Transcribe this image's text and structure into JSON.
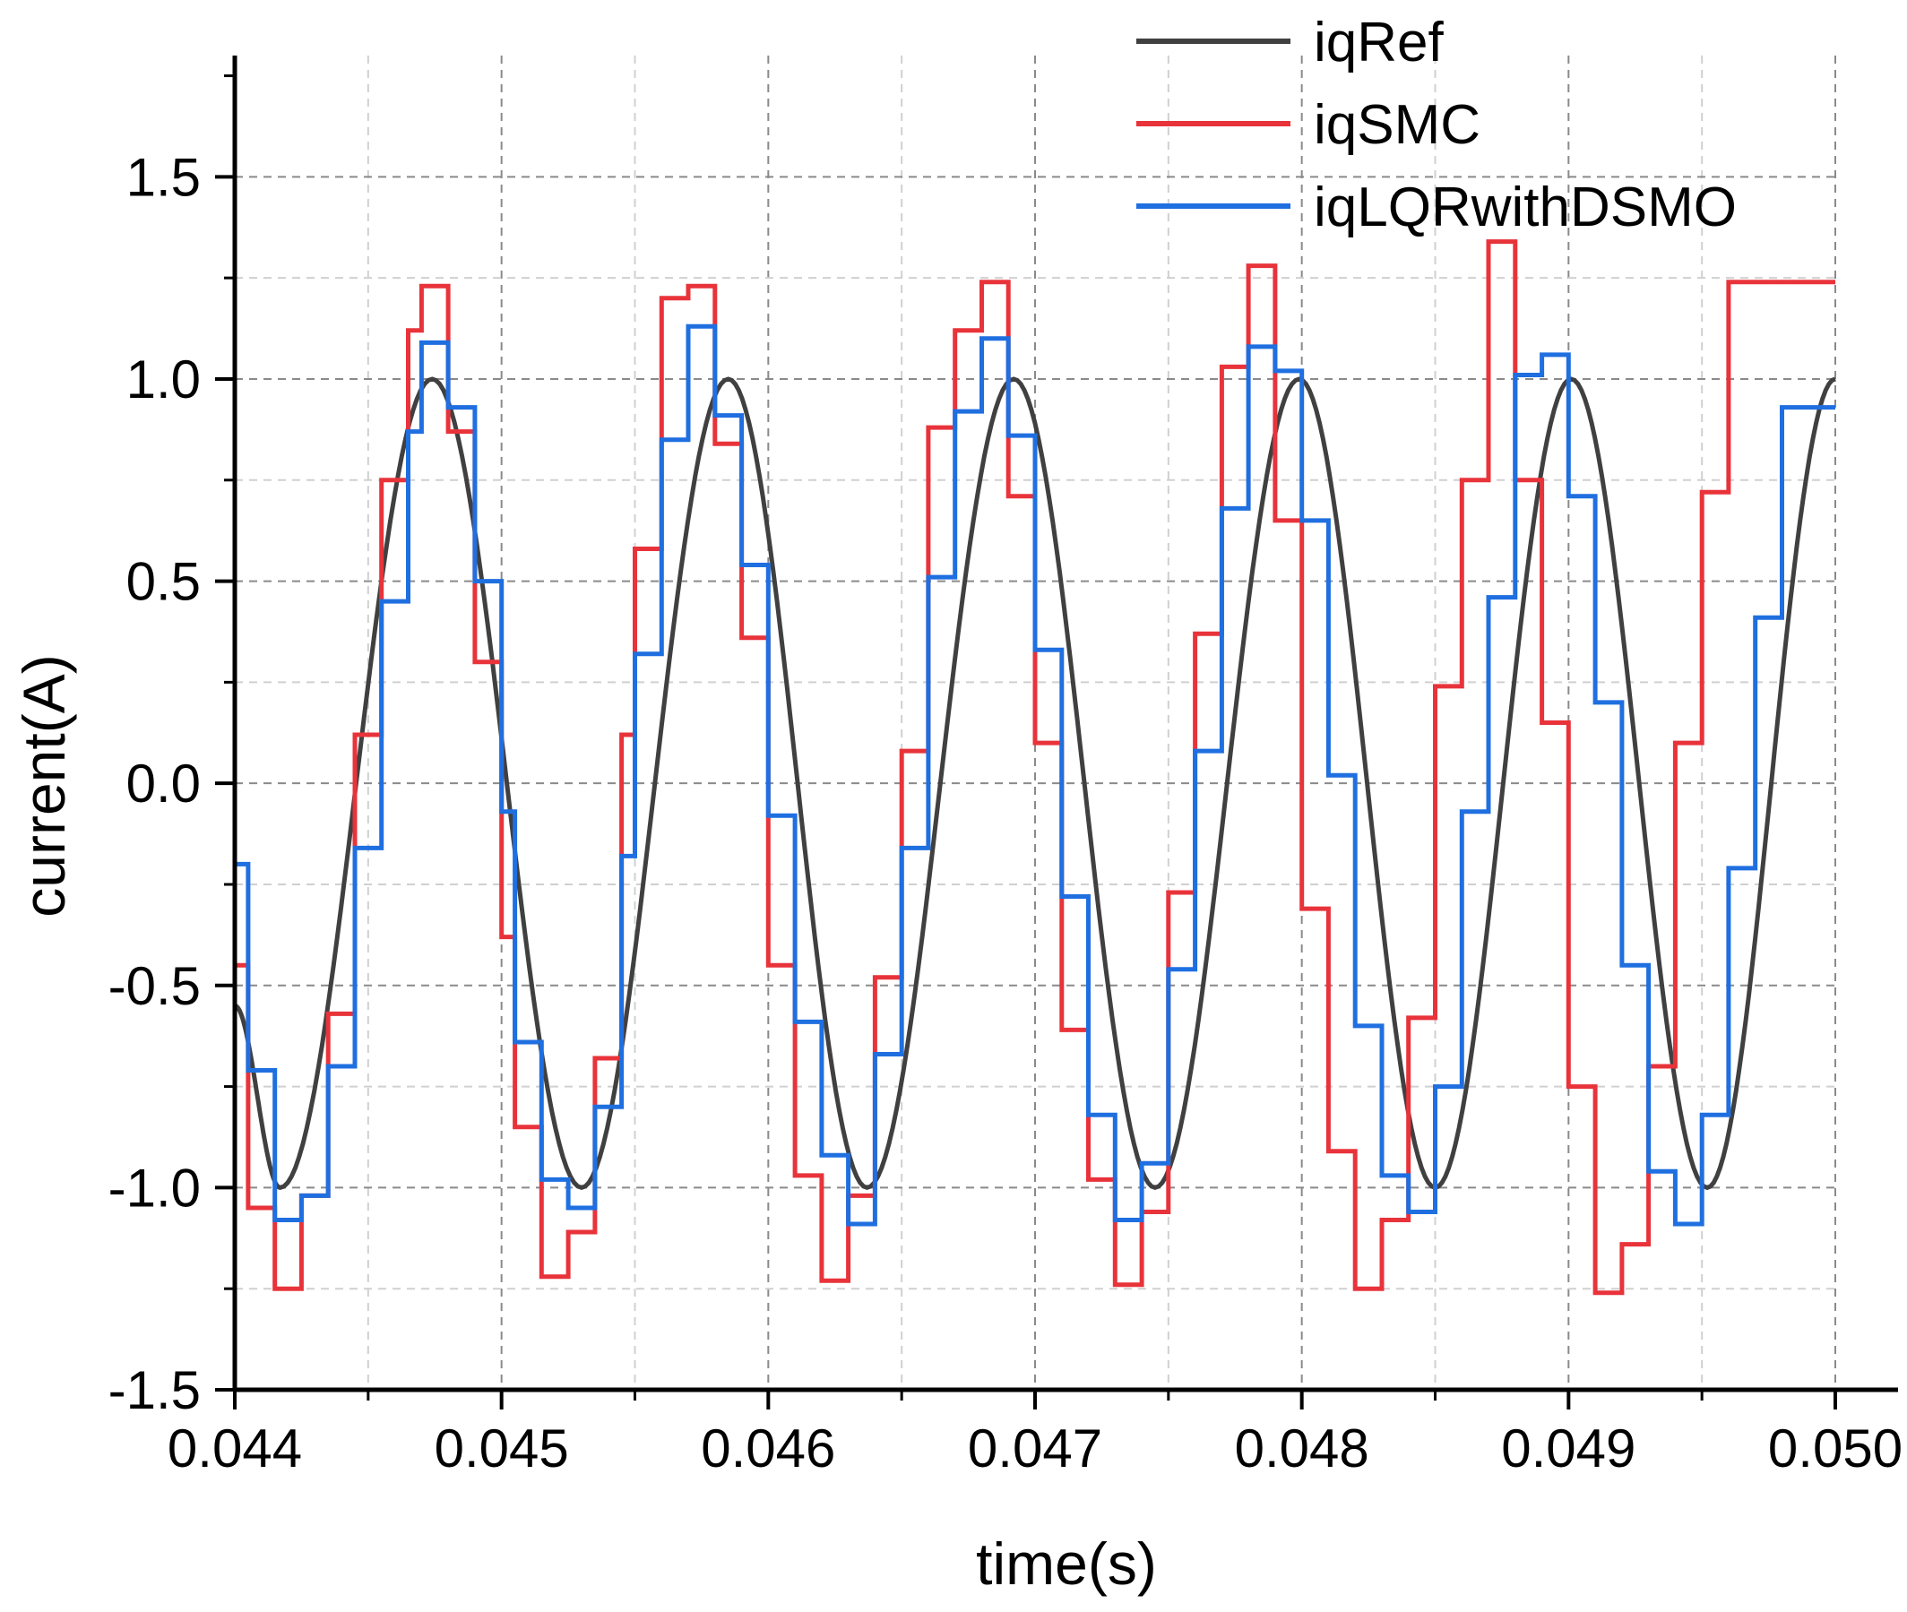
{
  "chart_data": {
    "type": "line",
    "title": "",
    "xlabel": "time(s)",
    "ylabel": "current(A)",
    "xlim": [
      0.044,
      0.05
    ],
    "ylim": [
      -1.5,
      1.8
    ],
    "x_ticks": [
      0.044,
      0.045,
      0.046,
      0.047,
      0.048,
      0.049,
      0.05
    ],
    "x_tick_labels": [
      "0.044",
      "0.045",
      "0.046",
      "0.047",
      "0.048",
      "0.049",
      "0.050"
    ],
    "y_ticks": [
      -1.5,
      -1.0,
      -0.5,
      0.0,
      0.5,
      1.0,
      1.5
    ],
    "y_tick_labels": [
      "-1.5",
      "-1.0",
      "-0.5",
      "0.0",
      "0.5",
      "1.0",
      "1.5"
    ],
    "grid": true,
    "legend_position": "top-right",
    "series": [
      {
        "name": "iqRef",
        "color": "#404040",
        "style": "sine",
        "amplitude": 1.0,
        "peak_times": [
          0.04474,
          0.04585,
          0.04692,
          0.04799,
          0.04901,
          0.05
        ],
        "trough_times": [
          0.04417,
          0.0453,
          0.04637,
          0.04745,
          0.0485,
          0.04952
        ],
        "start_value": -0.55,
        "end_value": 1.0
      },
      {
        "name": "iqSMC",
        "color": "#e8333a",
        "style": "step",
        "x": [
          0.044,
          0.04405,
          0.04415,
          0.04425,
          0.04435,
          0.04445,
          0.04455,
          0.04465,
          0.0447,
          0.0448,
          0.0449,
          0.045,
          0.04505,
          0.04515,
          0.04525,
          0.04535,
          0.04545,
          0.0455,
          0.0456,
          0.0457,
          0.0458,
          0.0459,
          0.046,
          0.0461,
          0.0462,
          0.0463,
          0.0464,
          0.0465,
          0.0466,
          0.0467,
          0.0468,
          0.0469,
          0.047,
          0.0471,
          0.0472,
          0.0473,
          0.0474,
          0.0475,
          0.0476,
          0.0477,
          0.0478,
          0.0479,
          0.048,
          0.0481,
          0.0482,
          0.0483,
          0.0484,
          0.0485,
          0.0486,
          0.0487,
          0.0488,
          0.0489,
          0.049,
          0.0491,
          0.0492,
          0.0493,
          0.0494,
          0.0495,
          0.0496,
          0.0497,
          0.0498,
          0.0499,
          0.05
        ],
        "y": [
          -0.45,
          -1.05,
          -1.25,
          -1.02,
          -0.57,
          0.12,
          0.75,
          1.12,
          1.23,
          0.87,
          0.3,
          -0.38,
          -0.85,
          -1.22,
          -1.11,
          -0.68,
          0.12,
          0.58,
          1.2,
          1.23,
          0.84,
          0.36,
          -0.45,
          -0.97,
          -1.23,
          -1.02,
          -0.48,
          0.08,
          0.88,
          1.12,
          1.24,
          0.71,
          0.1,
          -0.61,
          -0.98,
          -1.24,
          -1.06,
          -0.27,
          0.37,
          1.03,
          1.28,
          0.65,
          -0.31,
          -0.91,
          -1.25,
          -1.08,
          -0.58,
          0.24,
          0.75,
          1.34,
          0.75,
          0.15,
          -0.75,
          -1.26,
          -1.14,
          -0.7,
          0.1,
          0.72,
          1.24,
          1.24,
          1.24,
          1.24,
          1.24
        ]
      },
      {
        "name": "iqLQRwithDSMO",
        "color": "#1f6fe0",
        "style": "step",
        "x": [
          0.044,
          0.04405,
          0.04415,
          0.04425,
          0.04435,
          0.04445,
          0.04455,
          0.04465,
          0.0447,
          0.0448,
          0.0449,
          0.045,
          0.04505,
          0.04515,
          0.04525,
          0.04535,
          0.04545,
          0.0455,
          0.0456,
          0.0457,
          0.0458,
          0.0459,
          0.046,
          0.0461,
          0.0462,
          0.0463,
          0.0464,
          0.0465,
          0.0466,
          0.0467,
          0.0468,
          0.0469,
          0.047,
          0.0471,
          0.0472,
          0.0473,
          0.0474,
          0.0475,
          0.0476,
          0.0477,
          0.0478,
          0.0479,
          0.048,
          0.0481,
          0.0482,
          0.0483,
          0.0484,
          0.0485,
          0.0486,
          0.0487,
          0.0488,
          0.0489,
          0.049,
          0.0491,
          0.0492,
          0.0493,
          0.0494,
          0.0495,
          0.0496,
          0.0497,
          0.0498,
          0.0499,
          0.05
        ],
        "y": [
          -0.2,
          -0.71,
          -1.08,
          -1.02,
          -0.7,
          -0.16,
          0.45,
          0.87,
          1.09,
          0.93,
          0.5,
          -0.07,
          -0.64,
          -0.98,
          -1.05,
          -0.8,
          -0.18,
          0.32,
          0.85,
          1.13,
          0.91,
          0.54,
          -0.08,
          -0.59,
          -0.92,
          -1.09,
          -0.67,
          -0.16,
          0.51,
          0.92,
          1.1,
          0.86,
          0.33,
          -0.28,
          -0.82,
          -1.08,
          -0.94,
          -0.46,
          0.08,
          0.68,
          1.08,
          1.02,
          0.65,
          0.02,
          -0.6,
          -0.97,
          -1.06,
          -0.75,
          -0.07,
          0.46,
          1.01,
          1.06,
          0.71,
          0.2,
          -0.45,
          -0.96,
          -1.09,
          -0.82,
          -0.21,
          0.41,
          0.93,
          0.93,
          0.93
        ]
      }
    ]
  }
}
